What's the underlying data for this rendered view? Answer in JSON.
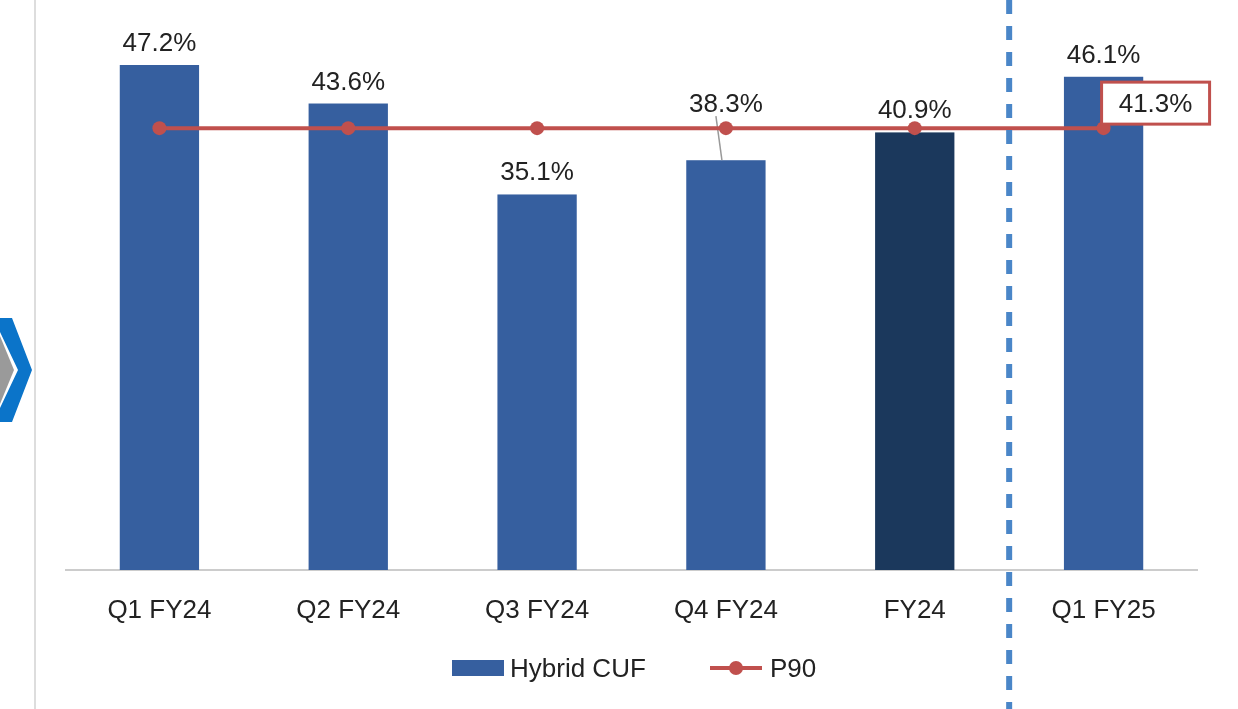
{
  "chart_data": {
    "type": "bar",
    "categories": [
      "Q1 FY24",
      "Q2 FY24",
      "Q3 FY24",
      "Q4 FY24",
      "FY24",
      "Q1 FY25"
    ],
    "series": [
      {
        "name": "Hybrid CUF",
        "color": "#365f9f",
        "colors": [
          "#365f9f",
          "#365f9f",
          "#365f9f",
          "#365f9f",
          "#1b385c",
          "#365f9f"
        ],
        "values": [
          47.2,
          43.6,
          35.1,
          38.3,
          40.9,
          46.1
        ],
        "value_labels": [
          "47.2%",
          "43.6%",
          "35.1%",
          "38.3%",
          "40.9%",
          "46.1%"
        ]
      },
      {
        "name": "P90",
        "type": "line",
        "color": "#c0504d",
        "marker": "circle",
        "values": [
          41.3,
          41.3,
          41.3,
          41.3,
          41.3,
          41.3
        ],
        "value_labels": [
          null,
          null,
          null,
          null,
          null,
          "41.3%"
        ]
      }
    ],
    "legend": "bottom"
  }
}
